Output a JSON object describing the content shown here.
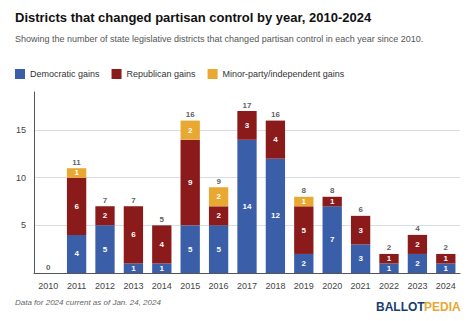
{
  "chart_data": {
    "type": "bar",
    "title": "Districts that changed partisan control by year, 2010-2024",
    "subtitle": "Showing the number of state legislative districts that changed partisan control in each year since 2010.",
    "footnote": "Data for 2024 current as of Jan. 24, 2024",
    "categories": [
      "2010",
      "2011",
      "2012",
      "2013",
      "2014",
      "2015",
      "2016",
      "2017",
      "2018",
      "2019",
      "2020",
      "2021",
      "2022",
      "2023",
      "2024"
    ],
    "series": [
      {
        "name": "Democratic gains",
        "color": "#3a5ea8",
        "values": [
          0,
          4,
          5,
          1,
          1,
          5,
          5,
          14,
          12,
          2,
          7,
          3,
          1,
          2,
          1
        ]
      },
      {
        "name": "Republican gains",
        "color": "#8b1a1a",
        "values": [
          0,
          6,
          2,
          6,
          4,
          9,
          2,
          3,
          4,
          5,
          1,
          3,
          1,
          2,
          1
        ]
      },
      {
        "name": "Minor-party/independent gains",
        "color": "#e8a832",
        "values": [
          0,
          1,
          0,
          0,
          0,
          2,
          2,
          0,
          0,
          1,
          0,
          0,
          0,
          0,
          0
        ]
      }
    ],
    "totals": [
      0,
      11,
      7,
      7,
      5,
      16,
      9,
      17,
      16,
      8,
      8,
      6,
      2,
      4,
      2
    ],
    "annotations": [
      {
        "text": "BALLOT",
        "color": "#1a3c6e"
      },
      {
        "text": "PEDIA",
        "color": "#e8a832"
      }
    ],
    "stacked": true,
    "data_labels": true,
    "ylim": [
      0,
      19
    ],
    "yticks": [
      5,
      10,
      15
    ],
    "grid": true,
    "legend": "upper left"
  }
}
